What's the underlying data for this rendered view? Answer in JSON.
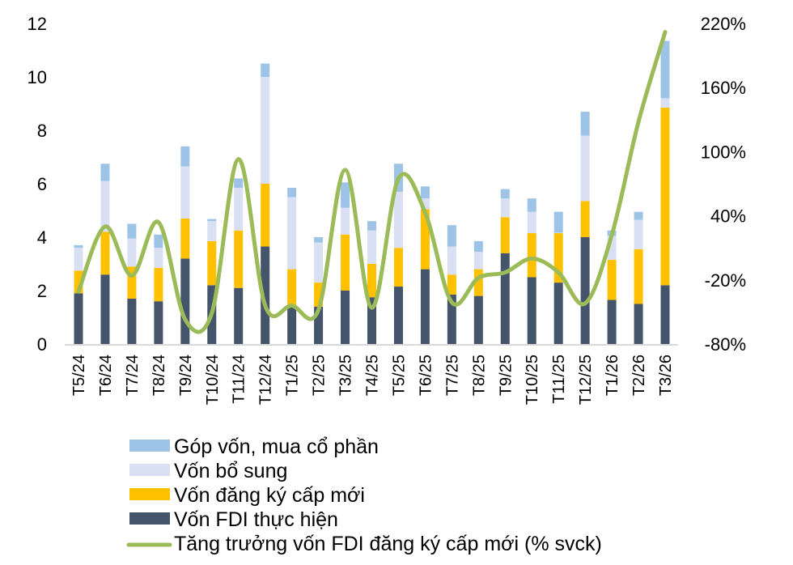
{
  "chart_data": {
    "type": "bar",
    "stacked": true,
    "categories": [
      "T5/24",
      "T6/24",
      "T7/24",
      "T8/24",
      "T9/24",
      "T10/24",
      "T11/24",
      "T12/24",
      "T1/25",
      "T2/25",
      "T3/25",
      "T4/25",
      "T5/25",
      "T6/25",
      "T7/25",
      "T8/25",
      "T9/25",
      "T10/25",
      "T11/25",
      "T12/25",
      "T1/26",
      "T2/26",
      "T3/26"
    ],
    "left_axis": {
      "ylim": [
        0,
        12
      ],
      "ticks": [
        "0",
        "2",
        "4",
        "6",
        "8",
        "10",
        "12"
      ]
    },
    "right_axis": {
      "ylim": [
        -80,
        220
      ],
      "ticks": [
        "-80%",
        "-20%",
        "40%",
        "100%",
        "160%",
        "220%"
      ]
    },
    "grid": false,
    "legend_position": "bottom",
    "series": [
      {
        "name": "Vốn FDI thực hiện",
        "type": "bar",
        "axis": "left",
        "color": "#44546a",
        "values": [
          1.9,
          2.6,
          1.7,
          1.6,
          3.2,
          2.2,
          2.1,
          3.65,
          1.4,
          1.4,
          2.0,
          1.75,
          2.15,
          2.8,
          1.85,
          1.8,
          3.4,
          2.5,
          2.3,
          4.0,
          1.65,
          1.5,
          2.2
        ]
      },
      {
        "name": "Vốn đăng ký cấp mới",
        "type": "bar",
        "axis": "left",
        "color": "#ffc000",
        "values": [
          0.85,
          1.6,
          1.2,
          1.25,
          1.5,
          1.65,
          2.15,
          2.35,
          1.4,
          0.9,
          2.1,
          1.25,
          1.45,
          2.25,
          0.75,
          1.0,
          1.35,
          1.65,
          1.85,
          1.35,
          1.5,
          2.05,
          6.65
        ]
      },
      {
        "name": "Vốn bổ sung",
        "type": "bar",
        "axis": "left",
        "color": "#dae0f3",
        "values": [
          0.85,
          1.9,
          1.05,
          0.75,
          1.95,
          0.75,
          1.6,
          4.0,
          2.7,
          1.5,
          1.0,
          1.25,
          2.1,
          0.4,
          1.05,
          0.65,
          0.7,
          0.8,
          0.02,
          2.45,
          0.9,
          1.1,
          0.35
        ]
      },
      {
        "name": "Góp vốn, mua cổ phần",
        "type": "bar",
        "axis": "left",
        "color": "#9dc3e6",
        "values": [
          0.1,
          0.65,
          0.55,
          0.5,
          0.75,
          0.08,
          0.35,
          0.5,
          0.35,
          0.2,
          0.95,
          0.35,
          1.05,
          0.45,
          0.8,
          0.4,
          0.35,
          0.5,
          0.78,
          0.9,
          0.2,
          0.3,
          2.15
        ]
      },
      {
        "name": "Tăng trưởng vốn FDI đăng ký cấp mới (% svck)",
        "type": "line",
        "axis": "right",
        "color": "#9bbb59",
        "values": [
          -31,
          30,
          -16,
          34,
          -57,
          -51,
          93,
          -44,
          -44,
          -48,
          83,
          -46,
          75,
          43,
          -41,
          -18,
          -13,
          0,
          -13,
          -42,
          22,
          128,
          212
        ]
      }
    ],
    "legend": [
      "Góp vốn, mua cổ phần",
      "Vốn bổ sung",
      "Vốn đăng ký cấp mới",
      "Vốn FDI thực hiện",
      "Tăng trưởng vốn FDI đăng ký cấp mới (% svck)"
    ]
  }
}
